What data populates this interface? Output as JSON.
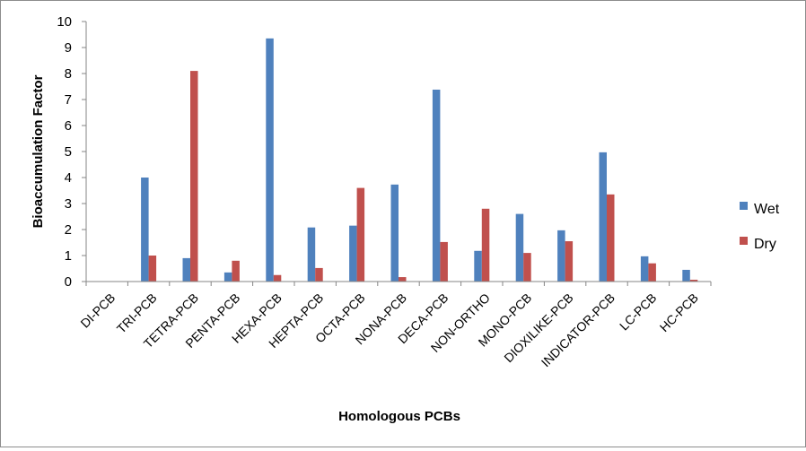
{
  "chart_data": {
    "type": "bar",
    "title": "",
    "xlabel": "Homologous PCBs",
    "ylabel": "Bioaccumulation Factor",
    "ylim": [
      0,
      10
    ],
    "yticks": [
      "0",
      "1",
      "2",
      "3",
      "4",
      "5",
      "6",
      "7",
      "8",
      "9",
      "10"
    ],
    "grid": false,
    "legend_position": "right",
    "categories": [
      "DI-PCB",
      "TRI-PCB",
      "TETRA-PCB",
      "PENTA-PCB",
      "HEXA-PCB",
      "HEPTA-PCB",
      "OCTA-PCB",
      "NONA-PCB",
      "DECA-PCB",
      "NON-ORTHO",
      "MONO-PCB",
      "DIOXILIKE-PCB",
      "INDICATOR-PCB",
      "LC-PCB",
      "HC-PCB"
    ],
    "series": [
      {
        "name": "Wet",
        "color": "#4f81bd",
        "values": [
          0,
          4.0,
          0.9,
          0.35,
          9.35,
          2.08,
          2.15,
          3.73,
          7.38,
          1.18,
          2.6,
          1.97,
          4.97,
          0.97,
          0.45
        ]
      },
      {
        "name": "Dry",
        "color": "#c0504d",
        "values": [
          0,
          1.0,
          8.1,
          0.8,
          0.25,
          0.52,
          3.6,
          0.17,
          1.52,
          2.8,
          1.1,
          1.55,
          3.35,
          0.7,
          0.07
        ]
      }
    ]
  }
}
